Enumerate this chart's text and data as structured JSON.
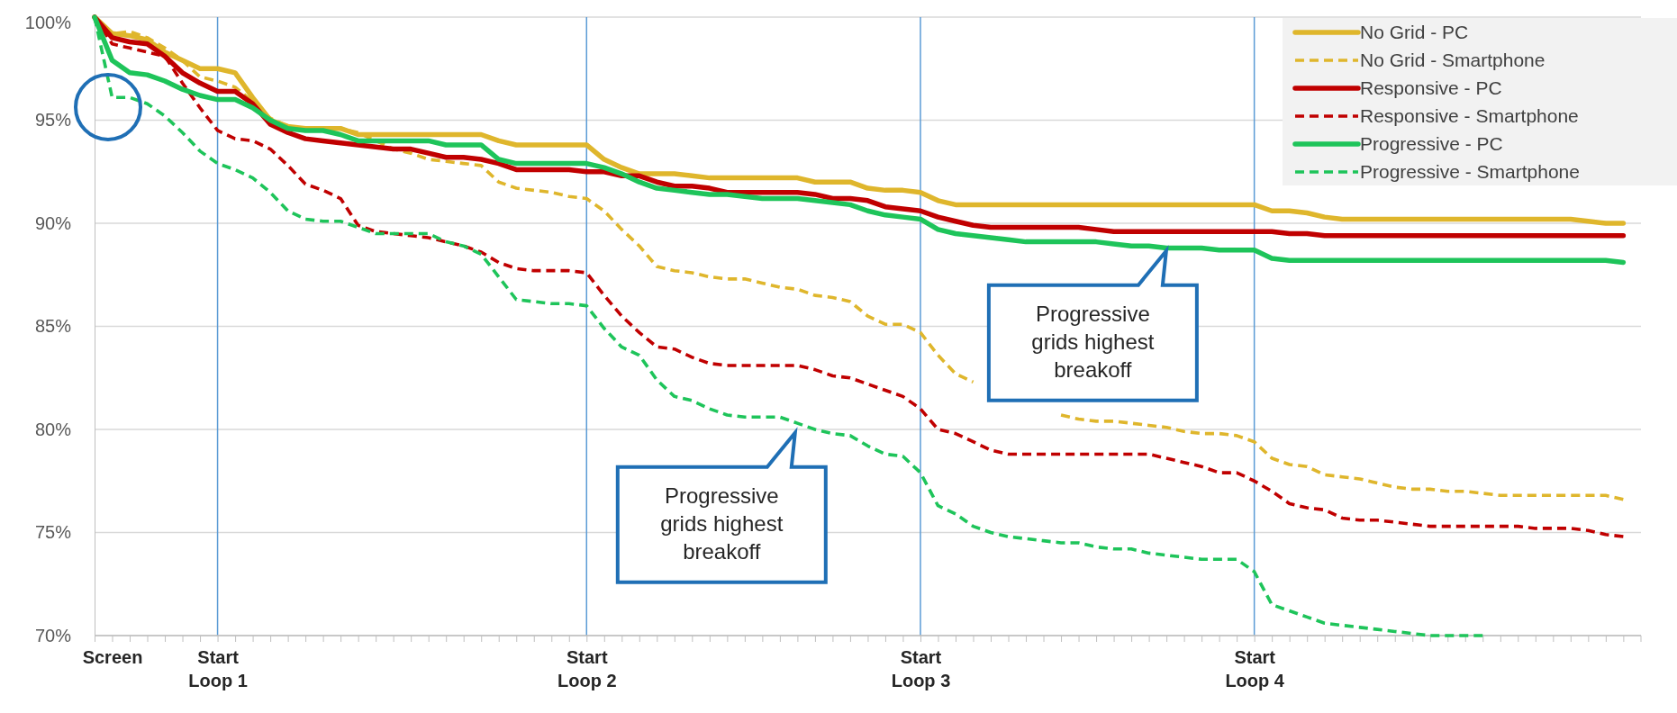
{
  "chart_data": {
    "type": "line",
    "categories": [
      null,
      "Screen",
      null,
      null,
      null,
      null,
      null,
      "Start Loop 1",
      null,
      null,
      null,
      null,
      null,
      null,
      null,
      null,
      null,
      null,
      null,
      null,
      null,
      null,
      null,
      null,
      null,
      null,
      null,
      null,
      "Start Loop 2",
      null,
      null,
      null,
      null,
      null,
      null,
      null,
      null,
      null,
      null,
      null,
      null,
      null,
      null,
      null,
      null,
      null,
      null,
      "Start Loop 3",
      null,
      null,
      null,
      null,
      null,
      null,
      null,
      null,
      null,
      null,
      null,
      null,
      null,
      null,
      null,
      null,
      null,
      null,
      "Start Loop 4",
      null,
      null,
      null,
      null,
      null,
      null,
      null,
      null,
      null,
      null,
      null,
      null,
      null,
      null,
      null,
      null,
      null,
      null,
      null,
      null,
      null
    ],
    "ylim": [
      70,
      100
    ],
    "yticks": [
      {
        "value": 70,
        "label": "70%"
      },
      {
        "value": 75,
        "label": "75%"
      },
      {
        "value": 80,
        "label": "80%"
      },
      {
        "value": 85,
        "label": "85%"
      },
      {
        "value": 90,
        "label": "90%"
      },
      {
        "value": 95,
        "label": "95%"
      },
      {
        "value": 100,
        "label": "100%"
      }
    ],
    "grid": "y",
    "legend": "top right",
    "marker": "none",
    "series": [
      {
        "name": "No Grid - PC",
        "color": "#dfb62c",
        "line_style": "solid",
        "values": [
          100,
          99.2,
          99.1,
          98.9,
          98.3,
          97.9,
          97.5,
          97.5,
          97.3,
          96.1,
          95.0,
          94.7,
          94.6,
          94.6,
          94.6,
          94.3,
          94.3,
          94.3,
          94.3,
          94.3,
          94.3,
          94.3,
          94.3,
          94.0,
          93.8,
          93.8,
          93.8,
          93.8,
          93.8,
          93.1,
          92.7,
          92.4,
          92.4,
          92.4,
          92.3,
          92.2,
          92.2,
          92.2,
          92.2,
          92.2,
          92.2,
          92.0,
          92.0,
          92.0,
          91.7,
          91.6,
          91.6,
          91.5,
          91.1,
          90.9,
          90.9,
          90.9,
          90.9,
          90.9,
          90.9,
          90.9,
          90.9,
          90.9,
          90.9,
          90.9,
          90.9,
          90.9,
          90.9,
          90.9,
          90.9,
          90.9,
          90.9,
          90.6,
          90.6,
          90.5,
          90.3,
          90.2,
          90.2,
          90.2,
          90.2,
          90.2,
          90.2,
          90.2,
          90.2,
          90.2,
          90.2,
          90.2,
          90.2,
          90.2,
          90.2,
          90.1,
          90.0,
          90.0
        ]
      },
      {
        "name": "No Grid - Smartphone",
        "color": "#dfb62c",
        "line_style": "dashed",
        "values": [
          100,
          99.2,
          99.3,
          99.0,
          98.5,
          97.9,
          97.1,
          96.9,
          96.6,
          95.9,
          95.1,
          94.7,
          94.6,
          94.6,
          94.6,
          94.4,
          94.0,
          93.6,
          93.4,
          93.1,
          93.0,
          92.9,
          92.8,
          92.0,
          91.7,
          91.6,
          91.5,
          91.3,
          91.2,
          90.6,
          89.7,
          88.9,
          87.9,
          87.7,
          87.6,
          87.4,
          87.3,
          87.3,
          87.1,
          86.9,
          86.8,
          86.5,
          86.4,
          86.2,
          85.5,
          85.1,
          85.1,
          84.7,
          83.6,
          82.7,
          82.3,
          null,
          null,
          null,
          null,
          80.7,
          80.5,
          80.4,
          80.4,
          80.3,
          80.2,
          80.1,
          79.9,
          79.8,
          79.8,
          79.7,
          79.4,
          78.6,
          78.3,
          78.2,
          77.8,
          77.7,
          77.6,
          77.4,
          77.2,
          77.1,
          77.1,
          77.0,
          77.0,
          76.9,
          76.8,
          76.8,
          76.8,
          76.8,
          76.8,
          76.8,
          76.8,
          76.6
        ]
      },
      {
        "name": "Responsive - PC",
        "color": "#c00000",
        "line_style": "solid",
        "values": [
          100,
          99.0,
          98.8,
          98.7,
          98.1,
          97.3,
          96.8,
          96.4,
          96.4,
          95.8,
          94.8,
          94.4,
          94.1,
          94.0,
          93.9,
          93.8,
          93.7,
          93.6,
          93.6,
          93.4,
          93.2,
          93.2,
          93.1,
          92.9,
          92.6,
          92.6,
          92.6,
          92.6,
          92.5,
          92.5,
          92.3,
          92.3,
          92.0,
          91.8,
          91.8,
          91.7,
          91.5,
          91.5,
          91.5,
          91.5,
          91.5,
          91.4,
          91.2,
          91.2,
          91.1,
          90.8,
          90.7,
          90.6,
          90.3,
          90.1,
          89.9,
          89.8,
          89.8,
          89.8,
          89.8,
          89.8,
          89.8,
          89.7,
          89.6,
          89.6,
          89.6,
          89.6,
          89.6,
          89.6,
          89.6,
          89.6,
          89.6,
          89.6,
          89.5,
          89.5,
          89.4,
          89.4,
          89.4,
          89.4,
          89.4,
          89.4,
          89.4,
          89.4,
          89.4,
          89.4,
          89.4,
          89.4,
          89.4,
          89.4,
          89.4,
          89.4,
          89.4,
          89.4
        ]
      },
      {
        "name": "Responsive - Smartphone",
        "color": "#c00000",
        "line_style": "dashed",
        "values": [
          100,
          98.7,
          98.5,
          98.3,
          98.1,
          96.8,
          95.6,
          94.5,
          94.1,
          94.0,
          93.6,
          92.8,
          91.9,
          91.6,
          91.2,
          89.9,
          89.6,
          89.5,
          89.4,
          89.3,
          89.1,
          88.9,
          88.6,
          88.1,
          87.8,
          87.7,
          87.7,
          87.7,
          87.6,
          86.5,
          85.5,
          84.7,
          84.0,
          83.9,
          83.5,
          83.2,
          83.1,
          83.1,
          83.1,
          83.1,
          83.1,
          82.9,
          82.6,
          82.5,
          82.2,
          81.9,
          81.6,
          81.0,
          80.0,
          79.8,
          79.4,
          79.0,
          78.8,
          78.8,
          78.8,
          78.8,
          78.8,
          78.8,
          78.8,
          78.8,
          78.8,
          78.6,
          78.4,
          78.2,
          77.9,
          77.9,
          77.5,
          77.0,
          76.4,
          76.2,
          76.1,
          75.7,
          75.6,
          75.6,
          75.5,
          75.4,
          75.3,
          75.3,
          75.3,
          75.3,
          75.3,
          75.3,
          75.2,
          75.2,
          75.2,
          75.1,
          74.9,
          74.8
        ]
      },
      {
        "name": "Progressive - PC",
        "color": "#1ec45a",
        "line_style": "solid",
        "values": [
          100,
          97.9,
          97.3,
          97.2,
          96.9,
          96.5,
          96.2,
          96.0,
          96.0,
          95.6,
          95.0,
          94.6,
          94.5,
          94.5,
          94.3,
          94.0,
          94.0,
          94.0,
          94.0,
          94.0,
          93.8,
          93.8,
          93.8,
          93.1,
          92.9,
          92.9,
          92.9,
          92.9,
          92.9,
          92.7,
          92.4,
          92.0,
          91.7,
          91.6,
          91.5,
          91.4,
          91.4,
          91.3,
          91.2,
          91.2,
          91.2,
          91.1,
          91.0,
          90.9,
          90.6,
          90.4,
          90.3,
          90.2,
          89.7,
          89.5,
          89.4,
          89.3,
          89.2,
          89.1,
          89.1,
          89.1,
          89.1,
          89.1,
          89.0,
          88.9,
          88.9,
          88.8,
          88.8,
          88.8,
          88.7,
          88.7,
          88.7,
          88.3,
          88.2,
          88.2,
          88.2,
          88.2,
          88.2,
          88.2,
          88.2,
          88.2,
          88.2,
          88.2,
          88.2,
          88.2,
          88.2,
          88.2,
          88.2,
          88.2,
          88.2,
          88.2,
          88.2,
          88.1
        ]
      },
      {
        "name": "Progressive - Smartphone",
        "color": "#1ec45a",
        "line_style": "dashed",
        "values": [
          100,
          96.1,
          96.1,
          95.8,
          95.2,
          94.4,
          93.5,
          92.9,
          92.6,
          92.2,
          91.5,
          90.6,
          90.2,
          90.1,
          90.1,
          89.8,
          89.5,
          89.5,
          89.5,
          89.5,
          89.1,
          88.9,
          88.5,
          87.4,
          86.3,
          86.2,
          86.1,
          86.1,
          86.0,
          84.9,
          84.0,
          83.6,
          82.4,
          81.6,
          81.4,
          81.0,
          80.7,
          80.6,
          80.6,
          80.6,
          80.3,
          80.0,
          79.8,
          79.7,
          79.2,
          78.8,
          78.7,
          77.9,
          76.3,
          75.9,
          75.3,
          75.0,
          74.8,
          74.7,
          74.6,
          74.5,
          74.5,
          74.3,
          74.2,
          74.2,
          74.0,
          73.9,
          73.8,
          73.7,
          73.7,
          73.7,
          73.1,
          71.5,
          71.2,
          70.9,
          70.6,
          70.5,
          70.4,
          70.3,
          70.2,
          70.1,
          70.0,
          70.0,
          70.0,
          70.0,
          null,
          null,
          null,
          null,
          null,
          null,
          null,
          null
        ]
      }
    ],
    "ref_lines": [
      {
        "axis": "x",
        "value": "Start Loop 1",
        "color": "#5b9bd5"
      },
      {
        "axis": "x",
        "value": "Start Loop 2",
        "color": "#5b9bd5"
      },
      {
        "axis": "x",
        "value": "Start Loop 3",
        "color": "#5b9bd5"
      },
      {
        "axis": "x",
        "value": "Start Loop 4",
        "color": "#5b9bd5"
      }
    ],
    "annotations": [
      "Progressive grids highest breakoff",
      "Progressive grids highest breakoff"
    ]
  }
}
